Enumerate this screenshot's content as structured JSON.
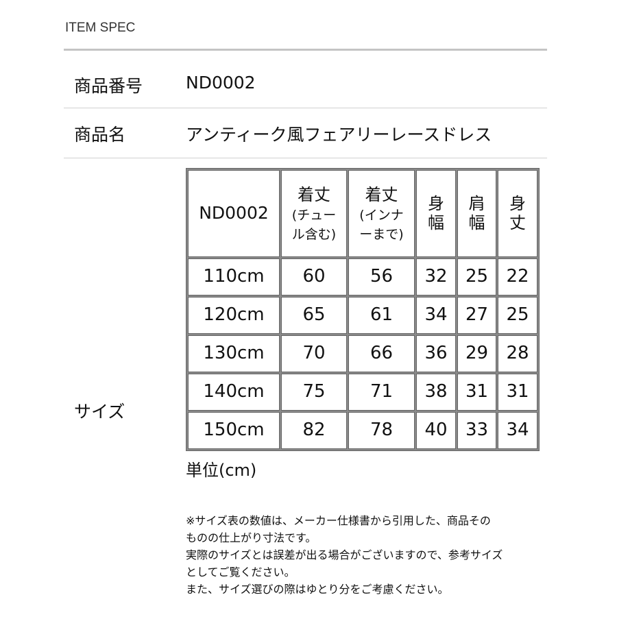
{
  "title": "ITEM SPEC",
  "rows": [
    {
      "label": "商品番号",
      "value": "ND0002"
    },
    {
      "label": "商品名",
      "value": "アンティーク風フェアリーレースドレス"
    },
    {
      "label": "サイズ"
    }
  ],
  "table": {
    "headers": [
      {
        "lines": [
          "ND0002"
        ]
      },
      {
        "lines": [
          "着丈",
          "(チュー",
          "ル含む)"
        ]
      },
      {
        "lines": [
          "着丈",
          "(インナ",
          "ーまで)"
        ]
      },
      {
        "lines": [
          "身",
          "幅"
        ]
      },
      {
        "lines": [
          "肩",
          "幅"
        ]
      },
      {
        "lines": [
          "身",
          "丈"
        ]
      }
    ],
    "rows": [
      [
        "110cm",
        "60",
        "56",
        "32",
        "25",
        "22"
      ],
      [
        "120cm",
        "65",
        "61",
        "34",
        "27",
        "25"
      ],
      [
        "130cm",
        "70",
        "66",
        "36",
        "29",
        "28"
      ],
      [
        "140cm",
        "75",
        "71",
        "38",
        "31",
        "31"
      ],
      [
        "150cm",
        "82",
        "78",
        "40",
        "33",
        "34"
      ]
    ]
  },
  "unit": "単位(cm)",
  "notes": [
    "※サイズ表の数値は、メーカー仕様書から引用した、商品その",
    "ものの仕上がり寸法です。",
    "実際のサイズとは誤差が出る場合がございますので、参考サイズ",
    "としてご覧ください。",
    "また、サイズ選びの際はゆとり分をご考慮ください。"
  ]
}
